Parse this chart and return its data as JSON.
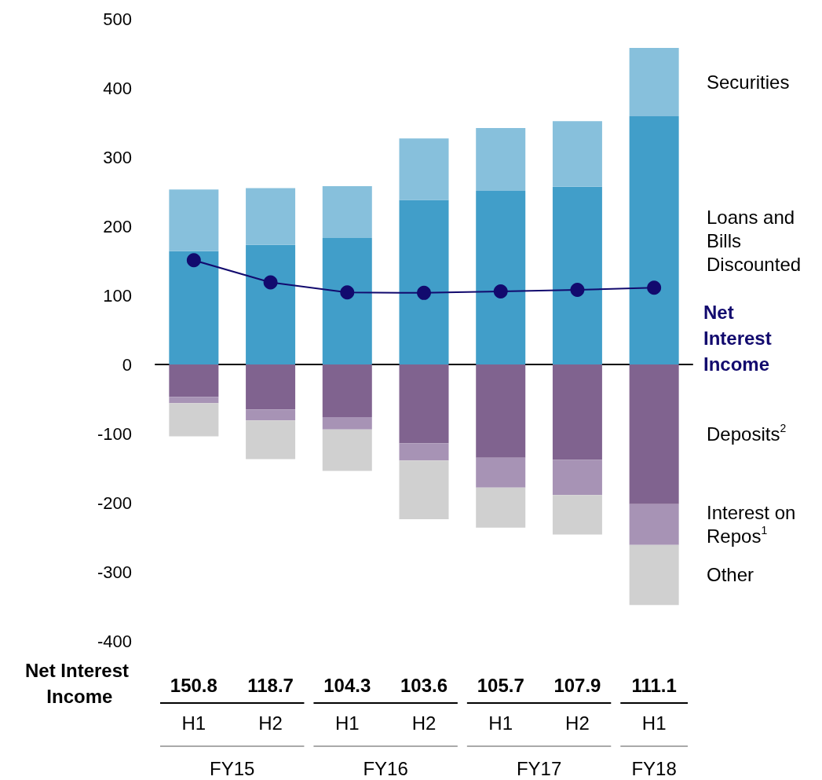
{
  "chart_data": {
    "type": "bar",
    "stacked": true,
    "legend": false,
    "categories": [
      "H1",
      "H2",
      "H1",
      "H2",
      "H1",
      "H2",
      "H1"
    ],
    "ylim": [
      -400,
      500
    ],
    "yticks": [
      -400,
      -300,
      -200,
      -100,
      0,
      100,
      200,
      300,
      400,
      500
    ],
    "annotations": [
      "FY15",
      "FY16",
      "FY17",
      "FY18"
    ],
    "series": [
      {
        "name": "Loans and Bills Discounted",
        "color": "#419ec9",
        "values": [
          164,
          173,
          183,
          238,
          251,
          257,
          359
        ]
      },
      {
        "name": "Securities",
        "color": "#87c0dc",
        "values": [
          89,
          82,
          75,
          89,
          91,
          95,
          99
        ]
      },
      {
        "name": "Deposits$^{2}$",
        "color": "#80638f",
        "values": [
          -47,
          -65,
          -76,
          -114,
          -135,
          -138,
          -202
        ]
      },
      {
        "name": "Interest on Repos$^{1}$",
        "color": "#a793b5",
        "values": [
          -9,
          -16,
          -18,
          -25,
          -43,
          -51,
          -59
        ]
      },
      {
        "name": "Other",
        "color": "#d0d0d0",
        "values": [
          -48,
          -56,
          -60,
          -85,
          -58,
          -57,
          -87
        ]
      },
      {
        "name": "Net Interest Income",
        "type": "line",
        "color": "#120a6e",
        "marker": "circle",
        "values": [
          150.8,
          118.7,
          104.3,
          103.6,
          105.7,
          107.9,
          111.1
        ],
        "value_labels": [
          "150.8",
          "118.7",
          "104.3",
          "103.6",
          "105.7",
          "107.9",
          "111.1"
        ]
      }
    ]
  }
}
